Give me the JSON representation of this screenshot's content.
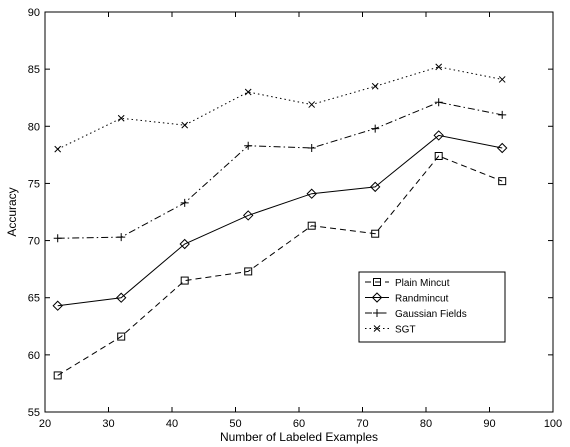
{
  "chart_data": {
    "type": "line",
    "xlabel": "Number of Labeled Examples",
    "ylabel": "Accuracy",
    "xlim": [
      20,
      100
    ],
    "ylim": [
      55,
      90
    ],
    "xticks": [
      20,
      30,
      40,
      50,
      60,
      70,
      80,
      90,
      100
    ],
    "yticks": [
      55,
      60,
      65,
      70,
      75,
      80,
      85,
      90
    ],
    "grid": false,
    "legend_position": "lower-right",
    "x": [
      22,
      32,
      42,
      52,
      62,
      72,
      82,
      92
    ],
    "series": [
      {
        "name": "Plain Mincut",
        "marker": "square",
        "line_style": "dashed",
        "values": [
          58.2,
          61.6,
          66.5,
          67.3,
          71.3,
          70.6,
          77.4,
          75.2
        ]
      },
      {
        "name": "Randmincut",
        "marker": "diamond",
        "line_style": "solid",
        "values": [
          64.3,
          65.0,
          69.7,
          72.2,
          74.1,
          74.7,
          79.2,
          78.1
        ]
      },
      {
        "name": "Gaussian Fields",
        "marker": "plus",
        "line_style": "dashdot",
        "values": [
          70.2,
          70.3,
          73.3,
          78.3,
          78.1,
          79.8,
          82.1,
          81.0
        ]
      },
      {
        "name": "SGT",
        "marker": "x",
        "line_style": "dotted",
        "values": [
          78.0,
          80.7,
          80.1,
          83.0,
          81.9,
          83.5,
          85.2,
          84.1
        ]
      }
    ]
  }
}
